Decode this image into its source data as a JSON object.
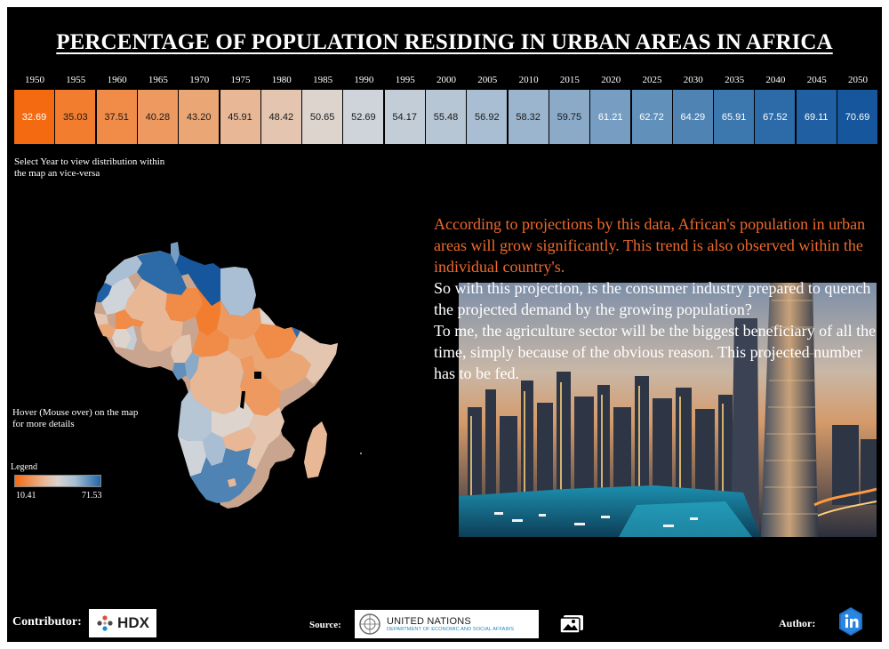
{
  "dashboard": {
    "title": "PERCENTAGE OF POPULATION RESIDING IN URBAN AREAS IN AFRICA"
  },
  "years": [
    {
      "year": "1950",
      "value": "32.69",
      "color": "#f46a10",
      "text_color": "#ffffff"
    },
    {
      "year": "1955",
      "value": "35.03",
      "color": "#f27d2f",
      "text_color": "#1a1a1a"
    },
    {
      "year": "1960",
      "value": "37.51",
      "color": "#f08b48",
      "text_color": "#1a1a1a"
    },
    {
      "year": "1965",
      "value": "40.28",
      "color": "#ee995f",
      "text_color": "#1a1a1a"
    },
    {
      "year": "1970",
      "value": "43.20",
      "color": "#eba676",
      "text_color": "#1a1a1a"
    },
    {
      "year": "1975",
      "value": "45.91",
      "color": "#e8b796",
      "text_color": "#1a1a1a"
    },
    {
      "year": "1980",
      "value": "48.42",
      "color": "#e3c5b0",
      "text_color": "#1a1a1a"
    },
    {
      "year": "1985",
      "value": "50.65",
      "color": "#ddd4ce",
      "text_color": "#1a1a1a"
    },
    {
      "year": "1990",
      "value": "52.69",
      "color": "#cfd4da",
      "text_color": "#1a1a1a"
    },
    {
      "year": "1995",
      "value": "54.17",
      "color": "#c2cdd8",
      "text_color": "#1a1a1a"
    },
    {
      "year": "2000",
      "value": "55.48",
      "color": "#b6c6d5",
      "text_color": "#1a1a1a"
    },
    {
      "year": "2005",
      "value": "56.92",
      "color": "#a9bed2",
      "text_color": "#1a1a1a"
    },
    {
      "year": "2010",
      "value": "58.32",
      "color": "#9bb5ce",
      "text_color": "#1a1a1a"
    },
    {
      "year": "2015",
      "value": "59.75",
      "color": "#8aaac8",
      "text_color": "#1a1a1a"
    },
    {
      "year": "2020",
      "value": "61.21",
      "color": "#779ec2",
      "text_color": "#ffffff"
    },
    {
      "year": "2025",
      "value": "62.72",
      "color": "#6190bb",
      "text_color": "#ffffff"
    },
    {
      "year": "2030",
      "value": "64.29",
      "color": "#4e83b4",
      "text_color": "#ffffff"
    },
    {
      "year": "2035",
      "value": "65.91",
      "color": "#3c77ae",
      "text_color": "#ffffff"
    },
    {
      "year": "2040",
      "value": "67.52",
      "color": "#2c6aa8",
      "text_color": "#ffffff"
    },
    {
      "year": "2045",
      "value": "69.11",
      "color": "#1f5fa2",
      "text_color": "#ffffff"
    },
    {
      "year": "2050",
      "value": "70.69",
      "color": "#15569c",
      "text_color": "#ffffff"
    }
  ],
  "hints": {
    "select_year": "Select Year to view distribution within the map an vice-versa",
    "hover": "Hover (Mouse over) on the map for more details"
  },
  "legend": {
    "title": "Legend",
    "min": "10.41",
    "max": "71.53"
  },
  "narrative": {
    "orange_text": "According to projections by this data, African's population in urban areas will grow significantly. This trend is also observed within the individual country's.",
    "white_paragraph_1": "So with this projection, is the consumer industry prepared to quench the projected demand by the growing population?",
    "white_paragraph_2": "To me, the agriculture sector will be the biggest beneficiary of all the time, simply because of the obvious reason. This projected number has to be fed."
  },
  "footer": {
    "contributor_label": "Contributor:",
    "hdx_text": "HDX",
    "source_label": "Source:",
    "un_title": "UNITED NATIONS",
    "un_subtitle": "DEPARTMENT OF ECONOMIC AND SOCIAL AFFAIRS",
    "author_label": "Author:",
    "linkedin_icon": "linkedin-icon",
    "gallery_icon": "image-gallery-icon"
  }
}
